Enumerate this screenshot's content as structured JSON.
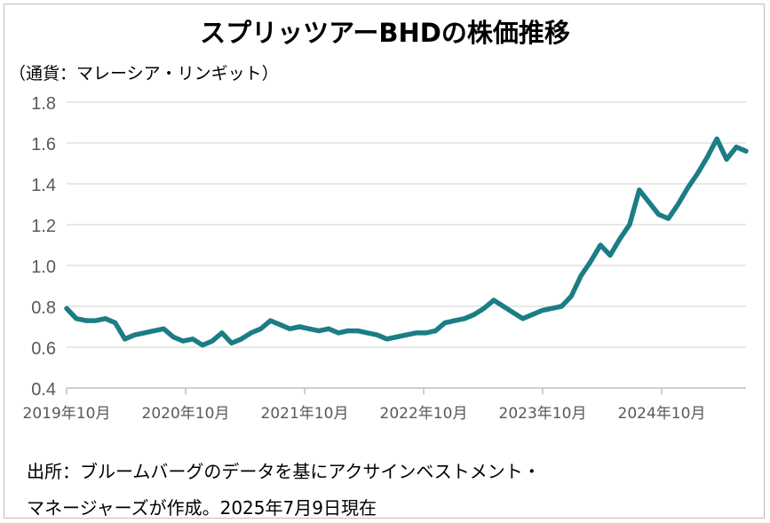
{
  "chart_data": {
    "type": "line",
    "title": "スプリッツアーBHDの株価推移",
    "unit_label": "（通貨：マレーシア・リンギット）",
    "ylim": [
      0.4,
      1.8
    ],
    "yticks": [
      "1.8",
      "1.6",
      "1.4",
      "1.2",
      "1.0",
      "0.8",
      "0.6",
      "0.4"
    ],
    "xticks": [
      "2019年10月",
      "2020年10月",
      "2021年10月",
      "2022年10月",
      "2023年10月",
      "2024年10月"
    ],
    "grid": true,
    "color": "#1b7d86",
    "series": [
      {
        "x": [
          0,
          1,
          2,
          3,
          4,
          5,
          6,
          7,
          8,
          9,
          10,
          11,
          12,
          13,
          14,
          15,
          16,
          17,
          18,
          19,
          20,
          21,
          22,
          23,
          24,
          25,
          26,
          27,
          28,
          29,
          30,
          31,
          32,
          33,
          34,
          35,
          36,
          37,
          38,
          39,
          40,
          41,
          42,
          43,
          44,
          45,
          46,
          47,
          48,
          49,
          50,
          51,
          52,
          53,
          54,
          55,
          56,
          57,
          58,
          59,
          60,
          61,
          62,
          63,
          64,
          65,
          66,
          67,
          68,
          69,
          70
        ],
        "values": [
          0.79,
          0.74,
          0.73,
          0.73,
          0.74,
          0.72,
          0.64,
          0.66,
          0.67,
          0.68,
          0.69,
          0.65,
          0.63,
          0.64,
          0.61,
          0.63,
          0.67,
          0.62,
          0.64,
          0.67,
          0.69,
          0.73,
          0.71,
          0.69,
          0.7,
          0.69,
          0.68,
          0.69,
          0.67,
          0.68,
          0.68,
          0.67,
          0.66,
          0.64,
          0.65,
          0.66,
          0.67,
          0.67,
          0.68,
          0.72,
          0.73,
          0.74,
          0.76,
          0.79,
          0.83,
          0.8,
          0.77,
          0.74,
          0.76,
          0.78,
          0.79,
          0.8,
          0.85,
          0.95,
          1.02,
          1.1,
          1.05,
          1.13,
          1.2,
          1.37,
          1.31,
          1.25,
          1.23,
          1.3,
          1.38,
          1.45,
          1.53,
          1.62,
          1.52,
          1.58,
          1.56
        ]
      }
    ]
  },
  "source": {
    "line1": "出所：ブルームバーグのデータを基にアクサインベストメント・",
    "line2": "マネージャーズが作成。2025年7月9日現在"
  }
}
